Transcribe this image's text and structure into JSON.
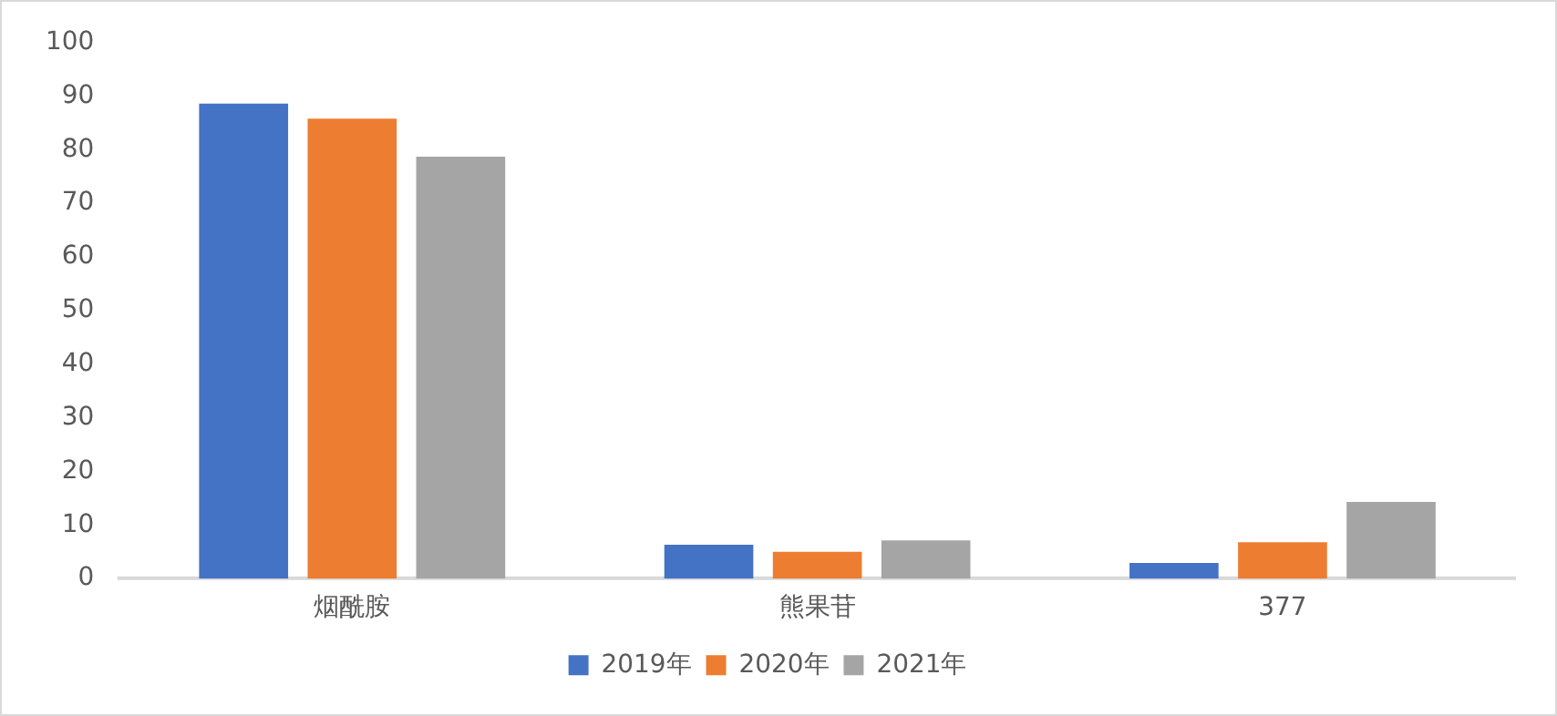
{
  "chart_data": {
    "type": "bar",
    "categories": [
      "烟酰胺",
      "熊果苷",
      "377"
    ],
    "series": [
      {
        "name": "2019年",
        "color": "#4472c4",
        "values": [
          88.6,
          6.3,
          2.9
        ]
      },
      {
        "name": "2020年",
        "color": "#ed7d31",
        "values": [
          85.8,
          5.0,
          6.8
        ]
      },
      {
        "name": "2021年",
        "color": "#a5a5a5",
        "values": [
          78.7,
          7.1,
          14.3
        ]
      }
    ],
    "ylim": [
      0,
      100
    ],
    "yticks": [
      0,
      10,
      20,
      30,
      40,
      50,
      60,
      70,
      80,
      90,
      100
    ],
    "grid": false,
    "legend": "bottom"
  }
}
